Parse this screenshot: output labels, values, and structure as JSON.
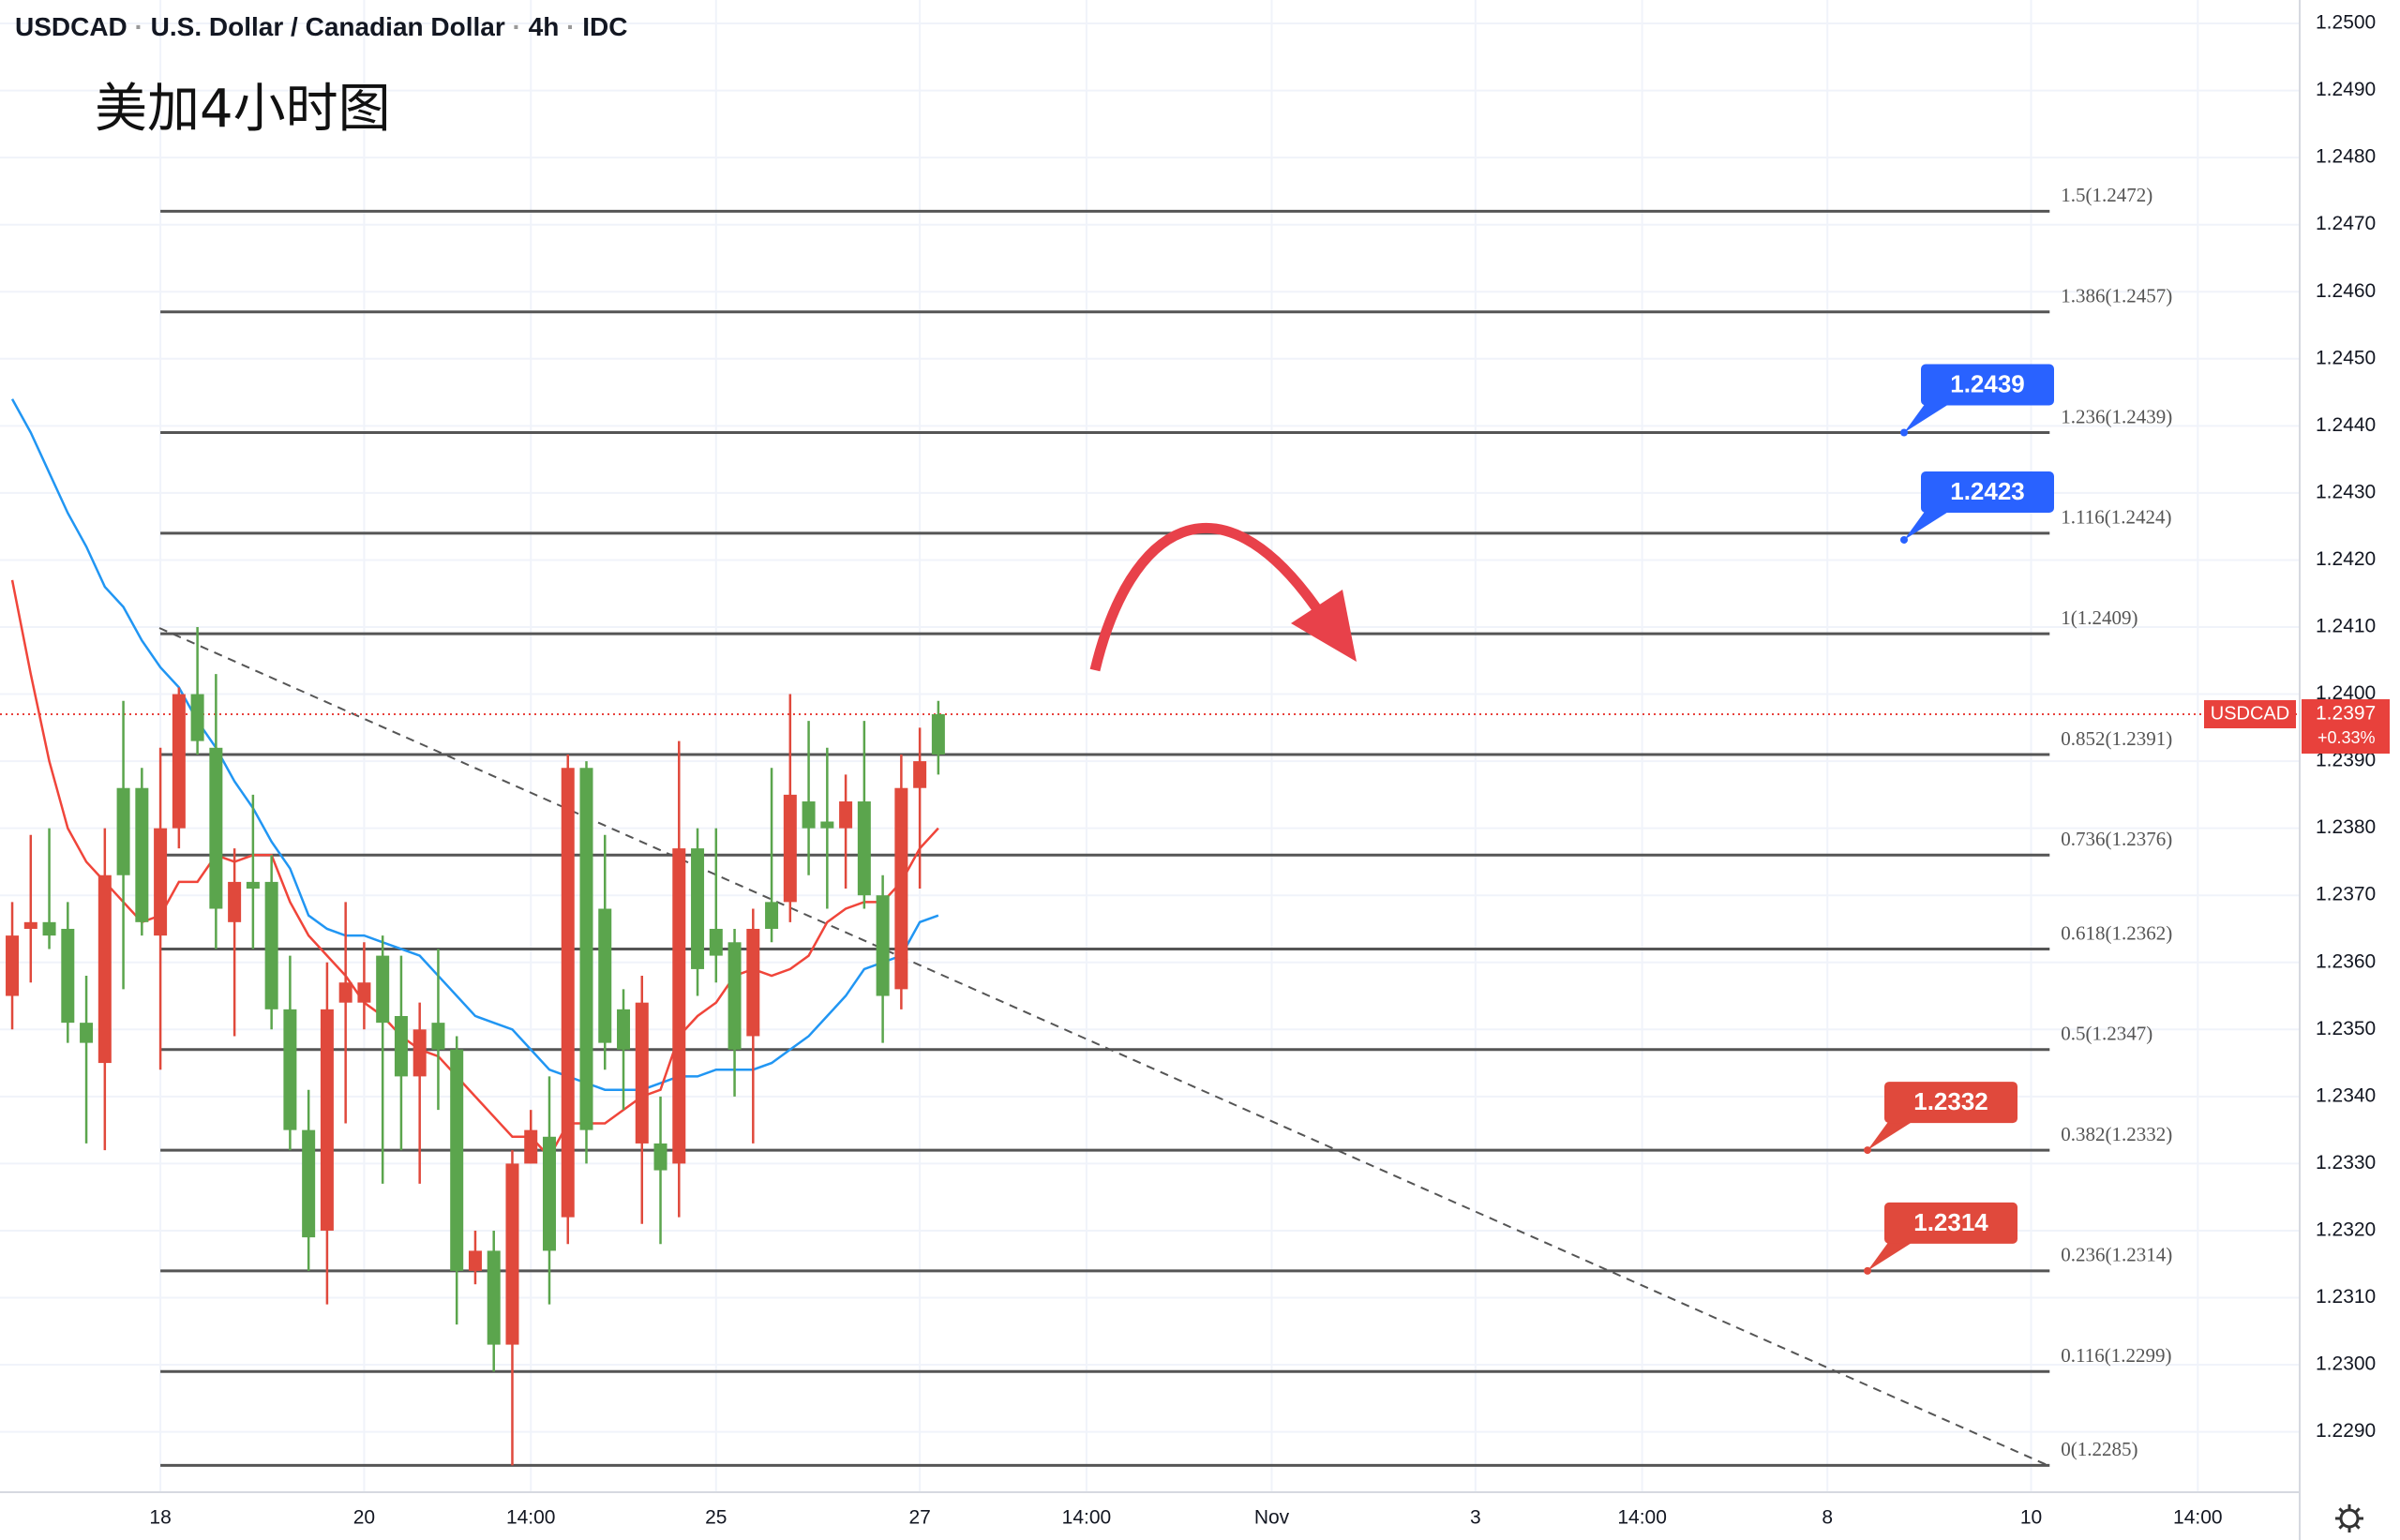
{
  "header": {
    "symbol": "USDCAD",
    "name": "U.S. Dollar / Canadian Dollar",
    "interval": "4h",
    "source": "IDC"
  },
  "chart_data": {
    "type": "candlestick",
    "title": "美加4小时图",
    "categories": [
      null,
      null,
      null,
      null,
      null,
      null,
      null,
      null,
      null,
      null,
      null,
      null,
      null,
      null,
      null,
      null,
      null,
      null,
      null,
      null,
      null,
      null,
      null,
      null,
      null,
      null,
      null,
      null,
      null,
      null,
      null,
      null,
      null,
      null,
      null,
      null,
      null,
      null,
      null,
      null,
      null,
      null,
      null,
      null,
      null,
      null,
      null,
      null,
      null,
      null,
      null
    ],
    "open": [
      1.2364,
      1.2366,
      1.2364,
      1.2351,
      1.2348,
      1.2373,
      1.2373,
      1.2366,
      1.238,
      1.24,
      1.2393,
      1.2368,
      1.2372,
      1.2371,
      1.2353,
      1.2335,
      1.2319,
      1.2353,
      1.2357,
      1.2357,
      1.2351,
      1.2343,
      1.235,
      1.2347,
      1.2314,
      1.2317,
      1.2303,
      1.233,
      1.2335,
      1.2317,
      1.2389,
      1.2335,
      1.2348,
      1.2347,
      1.2354,
      1.2329,
      1.2377,
      1.2359,
      1.2361,
      1.2347,
      1.2365,
      1.2365,
      1.2385,
      1.238,
      1.238,
      1.2384,
      1.237,
      1.2355,
      1.2386,
      1.239,
      1.2391
    ],
    "high": [
      1.2369,
      1.2379,
      1.238,
      1.2369,
      1.2358,
      1.238,
      1.2399,
      1.2389,
      1.2392,
      1.2401,
      1.241,
      1.2403,
      1.2377,
      1.2385,
      1.2376,
      1.2361,
      1.2341,
      1.236,
      1.2369,
      1.2363,
      1.2364,
      1.2361,
      1.2354,
      1.2362,
      1.2349,
      1.232,
      1.232,
      1.2332,
      1.2338,
      1.2343,
      1.2391,
      1.239,
      1.2379,
      1.2356,
      1.2358,
      1.234,
      1.2393,
      1.238,
      1.238,
      1.2365,
      1.2368,
      1.2389,
      1.24,
      1.2396,
      1.2392,
      1.2388,
      1.2396,
      1.2373,
      1.2391,
      1.2395,
      1.2399
    ],
    "low": [
      1.235,
      1.2357,
      1.2362,
      1.2348,
      1.2333,
      1.2332,
      1.2356,
      1.2364,
      1.2344,
      1.2377,
      1.2391,
      1.2362,
      1.2349,
      1.2362,
      1.235,
      1.2332,
      1.2314,
      1.2309,
      1.2336,
      1.235,
      1.2327,
      1.2332,
      1.2327,
      1.2338,
      1.2306,
      1.2312,
      1.2299,
      1.2285,
      1.233,
      1.2309,
      1.2318,
      1.233,
      1.2344,
      1.2338,
      1.2321,
      1.2318,
      1.2322,
      1.2355,
      1.2357,
      1.234,
      1.2333,
      1.2363,
      1.2366,
      1.2373,
      1.2368,
      1.2371,
      1.2368,
      1.2348,
      1.2353,
      1.2371,
      1.2388
    ],
    "close": [
      1.2355,
      1.2365,
      1.2366,
      1.2365,
      1.2351,
      1.2345,
      1.2386,
      1.2386,
      1.2364,
      1.238,
      1.24,
      1.2392,
      1.2366,
      1.2372,
      1.2372,
      1.2353,
      1.2335,
      1.232,
      1.2354,
      1.2354,
      1.2361,
      1.2352,
      1.2343,
      1.2351,
      1.2347,
      1.2314,
      1.2317,
      1.2303,
      1.233,
      1.2334,
      1.2322,
      1.2389,
      1.2368,
      1.2353,
      1.2333,
      1.2333,
      1.233,
      1.2377,
      1.2365,
      1.2363,
      1.2349,
      1.2369,
      1.2369,
      1.2384,
      1.2381,
      1.238,
      1.2384,
      1.237,
      1.2356,
      1.2386,
      1.2397
    ],
    "up_color": "#5ba54d",
    "down_color": "#e0493c",
    "overlays": [
      {
        "color": "#2196f3",
        "values": [
          1.2444,
          1.2439,
          1.2433,
          1.2427,
          1.2422,
          1.2416,
          1.2413,
          1.2408,
          1.2404,
          1.2401,
          1.2396,
          1.2392,
          1.2387,
          1.2383,
          1.2378,
          1.2374,
          1.2367,
          1.2365,
          1.2364,
          1.2364,
          1.2363,
          1.2362,
          1.2361,
          1.2358,
          1.2355,
          1.2352,
          1.2351,
          1.235,
          1.2347,
          1.2344,
          1.2343,
          1.2342,
          1.2341,
          1.2341,
          1.2341,
          1.2342,
          1.2343,
          1.2343,
          1.2344,
          1.2344,
          1.2344,
          1.2345,
          1.2347,
          1.2349,
          1.2352,
          1.2355,
          1.2359,
          1.236,
          1.2361,
          1.2366,
          1.2367
        ]
      },
      {
        "color": "#f0453a",
        "values": [
          1.2417,
          1.2403,
          1.239,
          1.238,
          1.2375,
          1.2372,
          1.2369,
          1.2366,
          1.2367,
          1.2372,
          1.2372,
          1.2376,
          1.2375,
          1.2376,
          1.2376,
          1.2369,
          1.2364,
          1.2361,
          1.2358,
          1.2354,
          1.2352,
          1.2349,
          1.2347,
          1.2346,
          1.2343,
          1.234,
          1.2337,
          1.2334,
          1.2334,
          1.2331,
          1.2336,
          1.2336,
          1.2336,
          1.2338,
          1.234,
          1.2341,
          1.2349,
          1.2352,
          1.2354,
          1.2358,
          1.2359,
          1.2358,
          1.2359,
          1.2361,
          1.2366,
          1.2368,
          1.2369,
          1.2369,
          1.2372,
          1.2377,
          1.238
        ]
      }
    ],
    "xlim": [
      -0.66,
      123.5
    ],
    "xticks": [
      {
        "value": 8,
        "label": "18"
      },
      {
        "value": 19,
        "label": "20"
      },
      {
        "value": 28,
        "label": "14:00"
      },
      {
        "value": 38,
        "label": "25"
      },
      {
        "value": 49,
        "label": "27"
      },
      {
        "value": 58,
        "label": "14:00"
      },
      {
        "value": 68,
        "label": "Nov"
      },
      {
        "value": 79,
        "label": "3"
      },
      {
        "value": 88,
        "label": "14:00"
      },
      {
        "value": 98,
        "label": "8"
      },
      {
        "value": 109,
        "label": "10"
      },
      {
        "value": 118,
        "label": "14:00"
      }
    ],
    "ylim": [
      1.2281,
      1.25035
    ],
    "yticks": [
      {
        "value": 1.229,
        "label": "1.2290"
      },
      {
        "value": 1.23,
        "label": "1.2300"
      },
      {
        "value": 1.231,
        "label": "1.2310"
      },
      {
        "value": 1.232,
        "label": "1.2320"
      },
      {
        "value": 1.233,
        "label": "1.2330"
      },
      {
        "value": 1.234,
        "label": "1.2340"
      },
      {
        "value": 1.235,
        "label": "1.2350"
      },
      {
        "value": 1.236,
        "label": "1.2360"
      },
      {
        "value": 1.237,
        "label": "1.2370"
      },
      {
        "value": 1.238,
        "label": "1.2380"
      },
      {
        "value": 1.239,
        "label": "1.2390"
      },
      {
        "value": 1.24,
        "label": "1.2400"
      },
      {
        "value": 1.241,
        "label": "1.2410"
      },
      {
        "value": 1.242,
        "label": "1.2420"
      },
      {
        "value": 1.243,
        "label": "1.2430"
      },
      {
        "value": 1.244,
        "label": "1.2440"
      },
      {
        "value": 1.245,
        "label": "1.2450"
      },
      {
        "value": 1.246,
        "label": "1.2460"
      },
      {
        "value": 1.247,
        "label": "1.2470"
      },
      {
        "value": 1.248,
        "label": "1.2480"
      },
      {
        "value": 1.249,
        "label": "1.2490"
      },
      {
        "value": 1.25,
        "label": "1.2500"
      }
    ],
    "grid": true,
    "fib_levels": [
      {
        "label": "1.5(1.2472)",
        "value": 1.2472
      },
      {
        "label": "1.386(1.2457)",
        "value": 1.2457
      },
      {
        "label": "1.236(1.2439)",
        "value": 1.2439
      },
      {
        "label": "1.116(1.2424)",
        "value": 1.2424
      },
      {
        "label": "1(1.2409)",
        "value": 1.2409
      },
      {
        "label": "0.852(1.2391)",
        "value": 1.2391
      },
      {
        "label": "0.736(1.2376)",
        "value": 1.2376
      },
      {
        "label": "0.618(1.2362)",
        "value": 1.2362
      },
      {
        "label": "0.5(1.2347)",
        "value": 1.2347
      },
      {
        "label": "0.382(1.2332)",
        "value": 1.2332
      },
      {
        "label": "0.236(1.2314)",
        "value": 1.2314
      },
      {
        "label": "0.116(1.2299)",
        "value": 1.2299
      },
      {
        "label": "0(1.2285)",
        "value": 1.2285
      }
    ],
    "callouts": [
      {
        "value": 1.2439,
        "color": "#2962ff"
      },
      {
        "value": 1.2423,
        "color": "#2962ff"
      },
      {
        "value": 1.2332,
        "color": "#e0493c"
      },
      {
        "value": 1.2314,
        "color": "#e0493c"
      }
    ],
    "last_price": {
      "label": "USDCAD",
      "value": 1.2397,
      "change": "+0.33%",
      "color": "#e8413c"
    }
  }
}
